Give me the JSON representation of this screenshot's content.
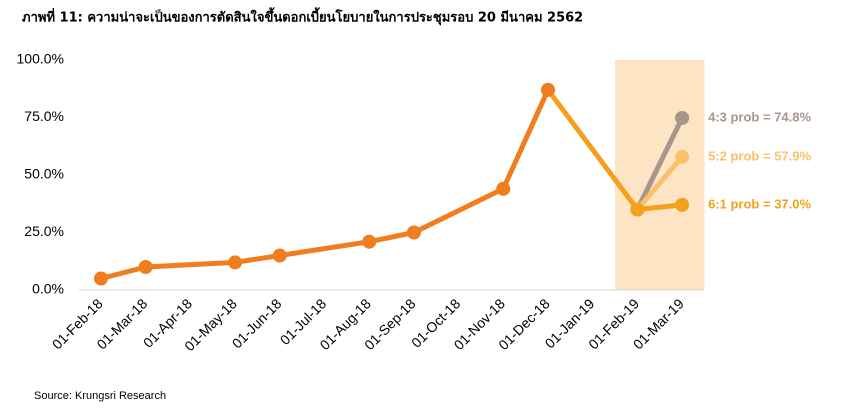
{
  "chart_data": {
    "type": "line",
    "title": "ภาพที่ 11: ความน่าจะเป็นของการตัดสินใจขึ้นดอกเบี้ยนโยบายในการประชุมรอบ 20 มีนาคม 2562",
    "source": "Source:  Krungsri Research",
    "xticks": [
      "01-Feb-18",
      "01-Mar-18",
      "01-Apr-18",
      "01-May-18",
      "01-Jun-18",
      "01-Jul-18",
      "01-Aug-18",
      "01-Sep-18",
      "01-Oct-18",
      "01-Nov-18",
      "01-Dec-18",
      "01-Jan-19",
      "01-Feb-19",
      "01-Mar-19"
    ],
    "ylim": [
      0,
      100
    ],
    "yticks": [
      {
        "value": 0,
        "label": "0.0%"
      },
      {
        "value": 25,
        "label": "25.0%"
      },
      {
        "value": 50,
        "label": "50.0%"
      },
      {
        "value": 75,
        "label": "75.0%"
      },
      {
        "value": 100,
        "label": "100.0%"
      }
    ],
    "grid": false,
    "series": [
      {
        "color": "#A8968C",
        "x": [
          "01-Feb-19",
          "01-Mar-19"
        ],
        "values": [
          35,
          74.8
        ],
        "value_labels": [
          null,
          "4:3 prob = 74.8%"
        ]
      },
      {
        "color": "#FBC068",
        "x": [
          "01-Feb-19",
          "01-Mar-19"
        ],
        "values": [
          35,
          57.9
        ],
        "value_labels": [
          null,
          "5:2 prob = 57.9%"
        ]
      },
      {
        "color": "#F4A01C",
        "x": [
          "01-Dec-18",
          "01-Feb-19",
          "01-Mar-19"
        ],
        "values": [
          87,
          35,
          37.0
        ],
        "value_labels": [
          null,
          null,
          "6:1 prob = 37.0%"
        ]
      },
      {
        "color": "#F07D1E",
        "x": [
          "01-Feb-18",
          "01-Mar-18",
          "01-May-18",
          "01-Jun-18",
          "01-Aug-18",
          "01-Sep-18",
          "01-Nov-18",
          "01-Dec-18"
        ],
        "values": [
          5,
          10,
          12,
          15,
          21,
          25,
          44,
          87
        ]
      }
    ]
  }
}
